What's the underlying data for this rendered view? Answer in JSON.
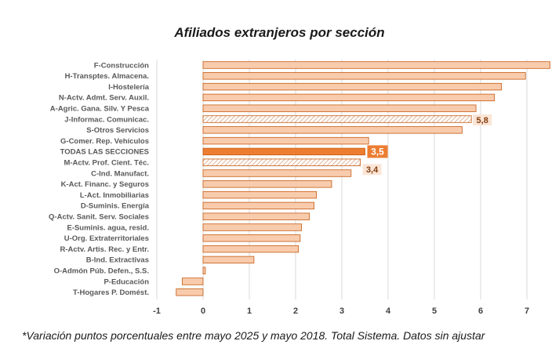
{
  "chart_data": {
    "type": "bar",
    "orientation": "horizontal",
    "title": "Afiliados extranjeros por sección",
    "note": "*Variación puntos porcentuales entre mayo 2025 y mayo 2018. Total Sistema. Datos sin ajustar",
    "xlim": [
      -1,
      7.5
    ],
    "xticks": [
      -1,
      0,
      1,
      2,
      3,
      4,
      5,
      6,
      7
    ],
    "grid": "vertical",
    "categories": [
      "F-Construcción",
      "H-Transptes. Almacena.",
      "I-Hostelería",
      "N-Actv. Admt. Serv. Auxil.",
      "A-Agric. Gana. Silv. Y Pesca",
      "J-Informac. Comunicac.",
      "S-Otros Servicios",
      "G-Comer. Rep. Vehículos",
      "TODAS LAS SECCIONES",
      "M-Actv. Prof. Cient. Téc.",
      "C-Ind. Manufact.",
      "K-Act. Financ. y Seguros",
      "L-Act. Inmobiliarias",
      "D-Suminis. Energía",
      "Q-Actv. Sanit. Serv. Sociales",
      "E-Suminis. agua, resid.",
      "U-Org. Extraterritoriales",
      "R-Actv. Artis. Rec. y Entr.",
      "B-Ind. Extractivas",
      "O-Admón Púb. Defen., S.S.",
      "P-Educación",
      "T-Hogares P. Domést."
    ],
    "values": [
      7.5,
      6.97,
      6.45,
      6.3,
      5.9,
      5.8,
      5.6,
      3.58,
      3.5,
      3.4,
      3.2,
      2.78,
      2.45,
      2.4,
      2.3,
      2.13,
      2.1,
      2.06,
      1.1,
      0.05,
      -0.45,
      -0.58
    ],
    "styles": [
      "normal",
      "normal",
      "normal",
      "normal",
      "normal",
      "hatched",
      "normal",
      "normal",
      "total",
      "hatched",
      "normal",
      "normal",
      "normal",
      "normal",
      "normal",
      "normal",
      "normal",
      "normal",
      "normal",
      "normal",
      "normal",
      "normal"
    ],
    "data_labels": [
      "",
      "",
      "",
      "",
      "",
      "5,8",
      "",
      "",
      "3,5",
      "3,4",
      "",
      "",
      "",
      "",
      "",
      "",
      "",
      "",
      "",
      "",
      "",
      ""
    ],
    "colors": {
      "bar_fill": "#f8cbad",
      "bar_stroke": "#c55a11",
      "total_fill": "#ed7d31",
      "hatch": "#d9a07a",
      "label_box": "#fbe5d6",
      "label_text": "#843c0c",
      "grid": "#d9d9d9"
    }
  }
}
